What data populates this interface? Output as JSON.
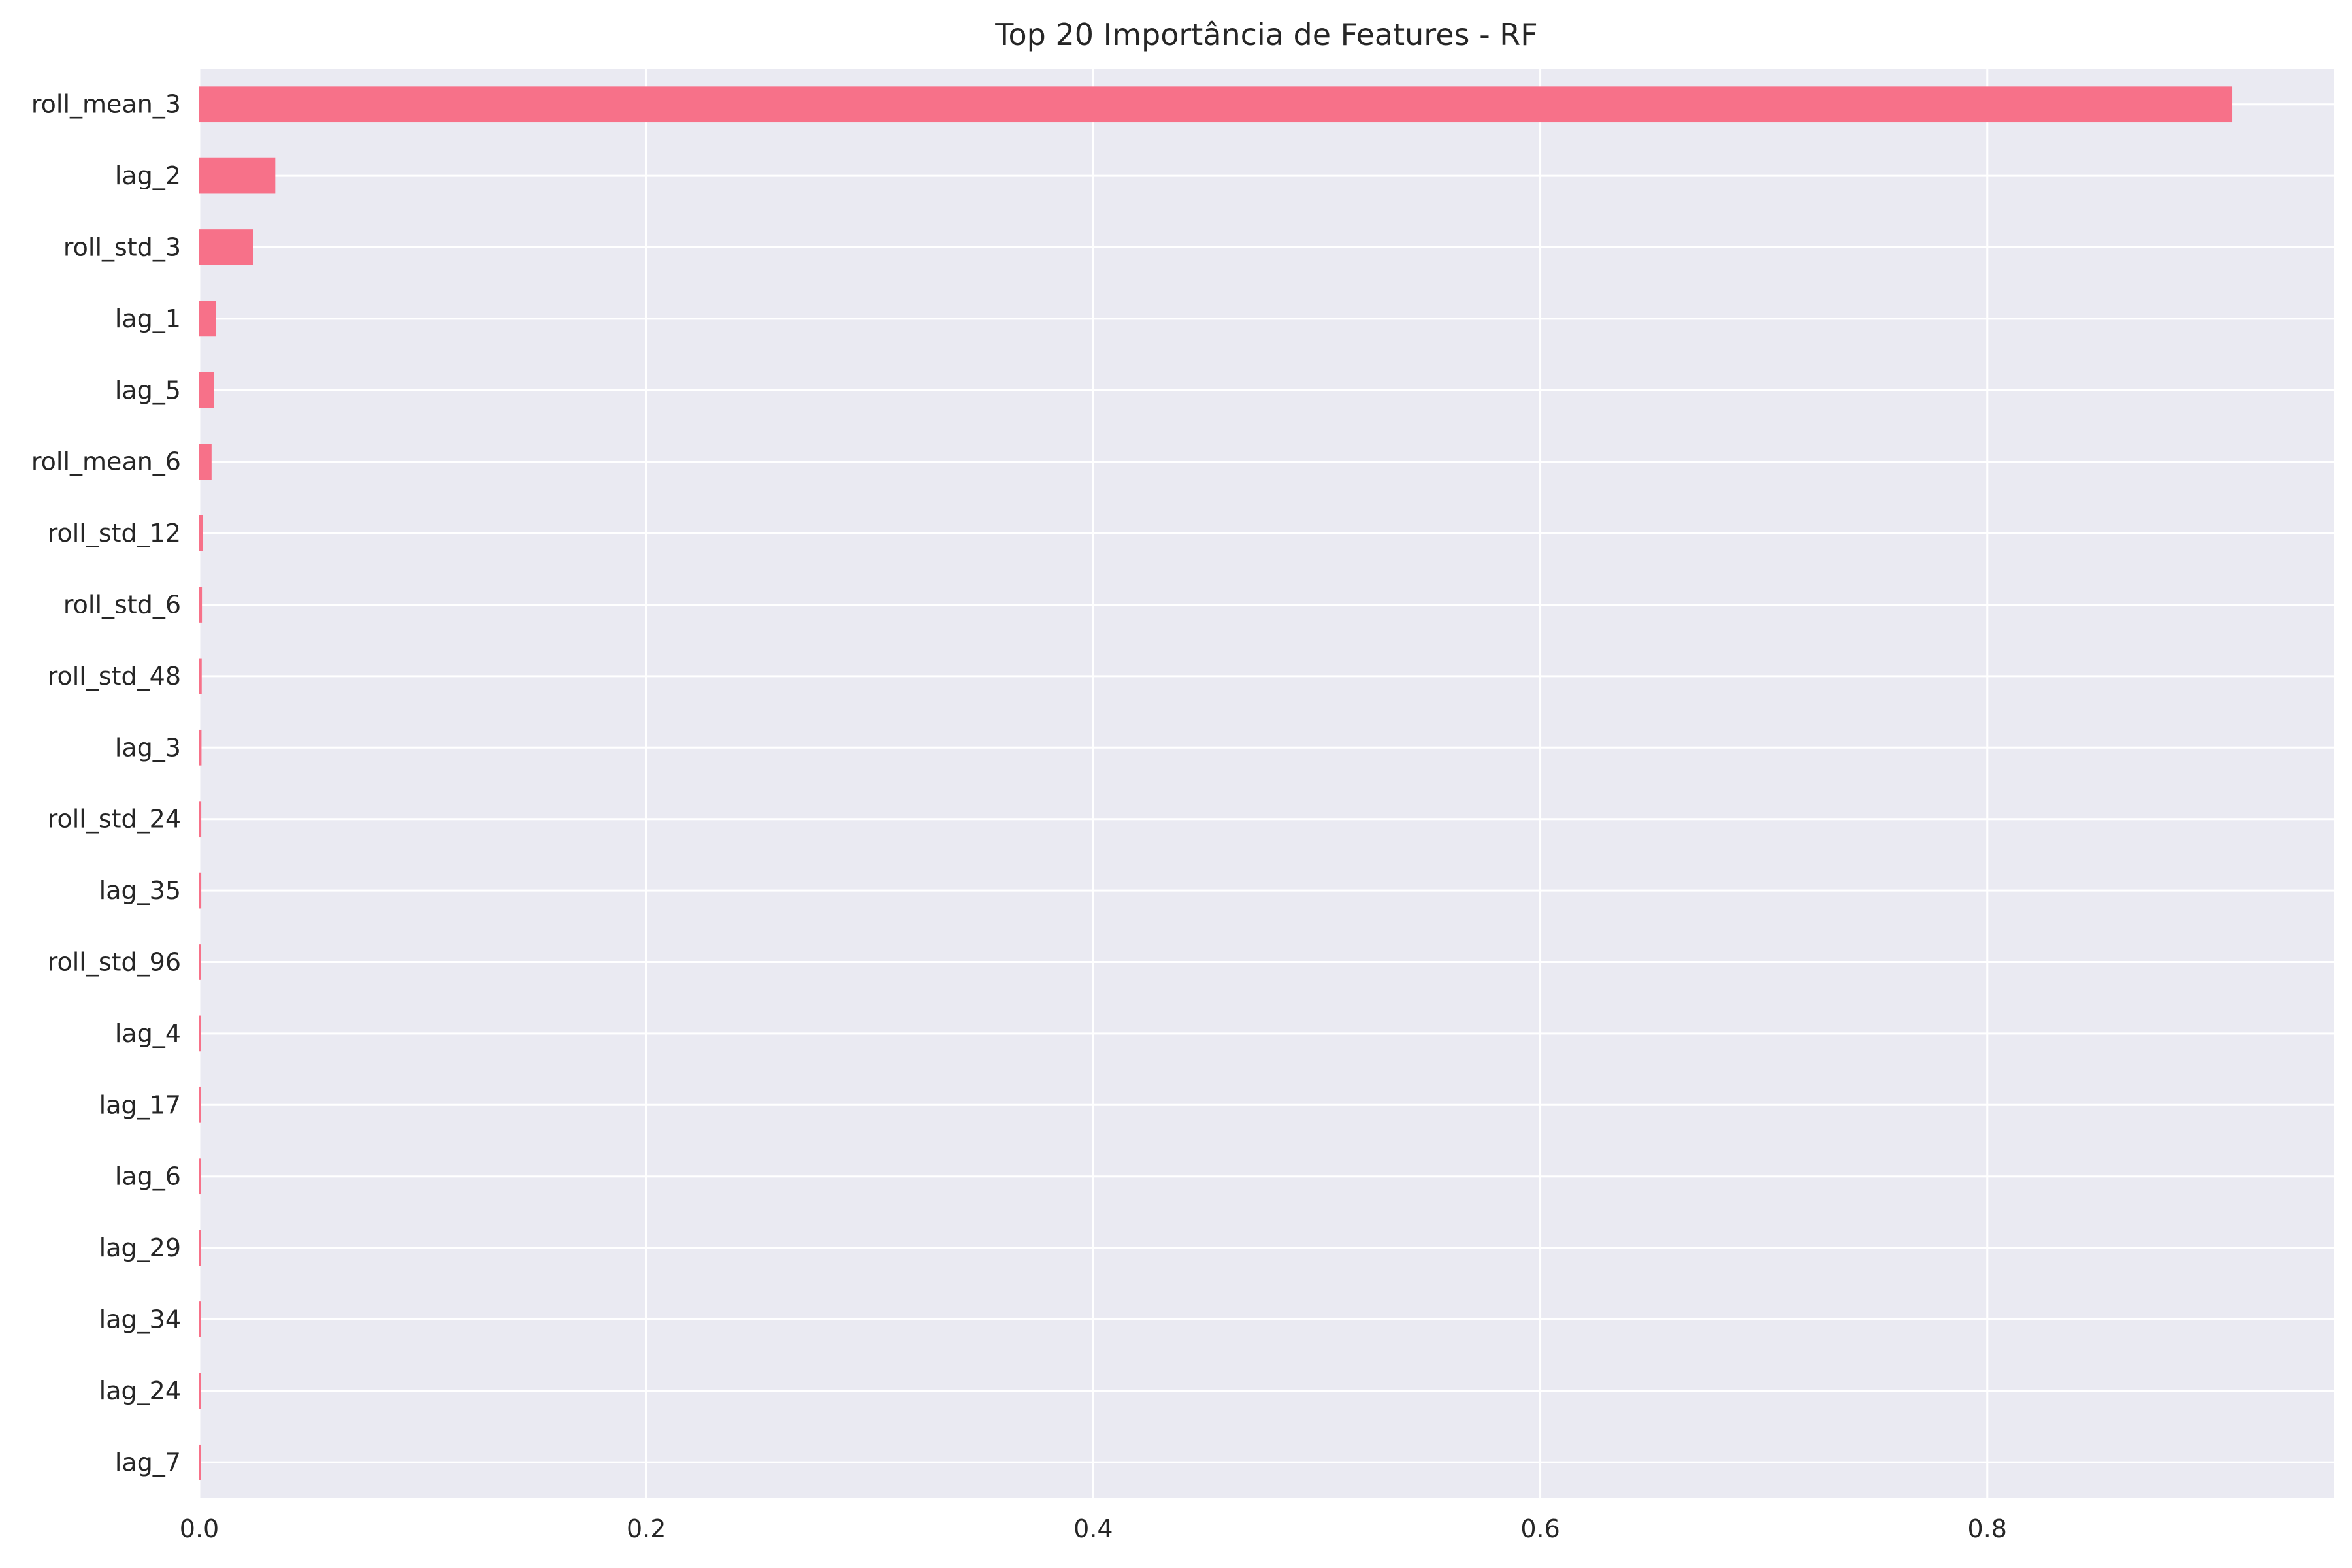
{
  "chart_data": {
    "type": "bar",
    "orientation": "horizontal",
    "title": "Top 20 Importância de Features - RF",
    "xlabel": "",
    "ylabel": "",
    "categories": [
      "roll_mean_3",
      "lag_2",
      "roll_std_3",
      "lag_1",
      "lag_5",
      "roll_mean_6",
      "roll_std_12",
      "roll_std_6",
      "roll_std_48",
      "lag_3",
      "roll_std_24",
      "lag_35",
      "roll_std_96",
      "lag_4",
      "lag_17",
      "lag_6",
      "lag_29",
      "lag_34",
      "lag_24",
      "lag_7"
    ],
    "values": [
      0.9097,
      0.034,
      0.024,
      0.0075,
      0.0065,
      0.0055,
      0.0015,
      0.0012,
      0.0011,
      0.001,
      0.0009,
      0.0009,
      0.0008,
      0.0008,
      0.0007,
      0.0007,
      0.0007,
      0.0006,
      0.0006,
      0.0006
    ],
    "xlim": [
      0,
      0.955
    ],
    "xticks": [
      0.0,
      0.2,
      0.4,
      0.6,
      0.8
    ],
    "xtick_labels": [
      "0.0",
      "0.2",
      "0.4",
      "0.6",
      "0.8"
    ],
    "grid": true,
    "legend": "none",
    "colors": {
      "bar": "#f77189",
      "background": "#eaeaf2",
      "grid": "#ffffff",
      "text": "#262626"
    }
  }
}
